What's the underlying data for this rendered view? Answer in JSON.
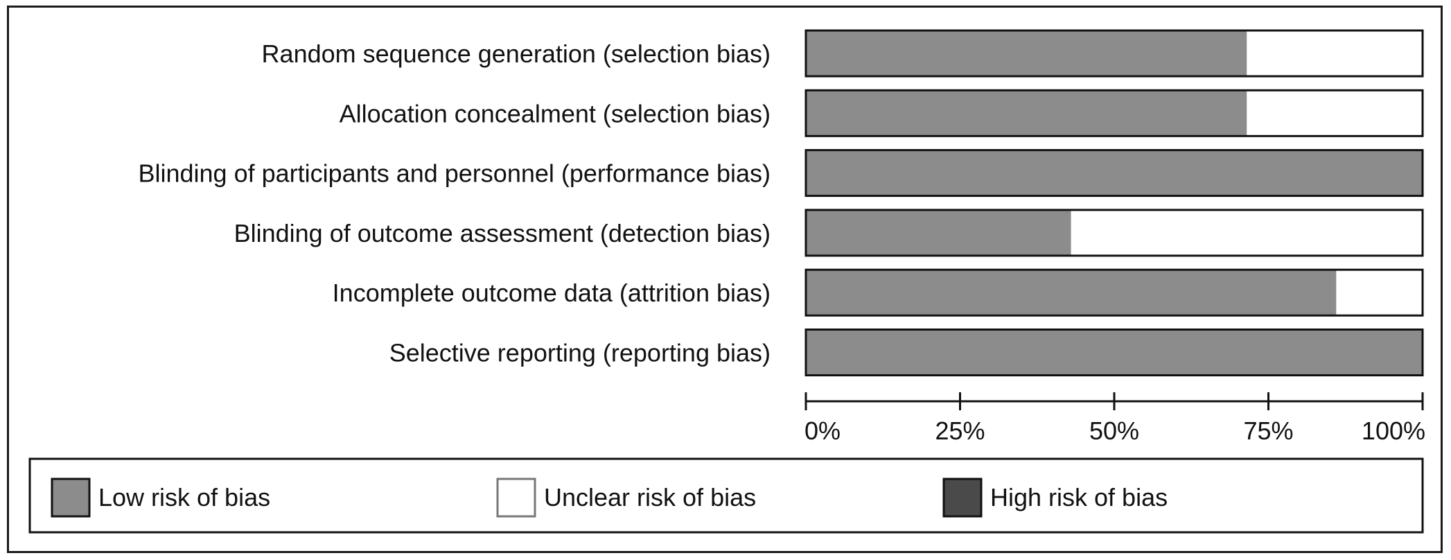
{
  "chart_data": {
    "type": "bar",
    "orientation": "horizontal",
    "stacked": true,
    "percent": true,
    "categories": [
      "Random sequence generation (selection bias)",
      "Allocation concealment (selection bias)",
      "Blinding of participants and personnel (performance bias)",
      "Blinding of outcome assessment (detection bias)",
      "Incomplete outcome data (attrition bias)",
      "Selective reporting (reporting bias)"
    ],
    "series": [
      {
        "name": "Low risk of bias",
        "color": "#8c8c8c",
        "values": [
          71.5,
          71.5,
          100,
          43,
          86,
          100
        ]
      },
      {
        "name": "Unclear risk of bias",
        "color": "#ffffff",
        "values": [
          28.5,
          28.5,
          0,
          57,
          14,
          0
        ]
      },
      {
        "name": "High risk of bias",
        "color": "#4a4a4a",
        "values": [
          0,
          0,
          0,
          0,
          0,
          0
        ]
      }
    ],
    "xlim": [
      0,
      100
    ],
    "xticks": [
      "0%",
      "25%",
      "50%",
      "75%",
      "100%"
    ],
    "legend_position": "bottom",
    "grid": false
  }
}
